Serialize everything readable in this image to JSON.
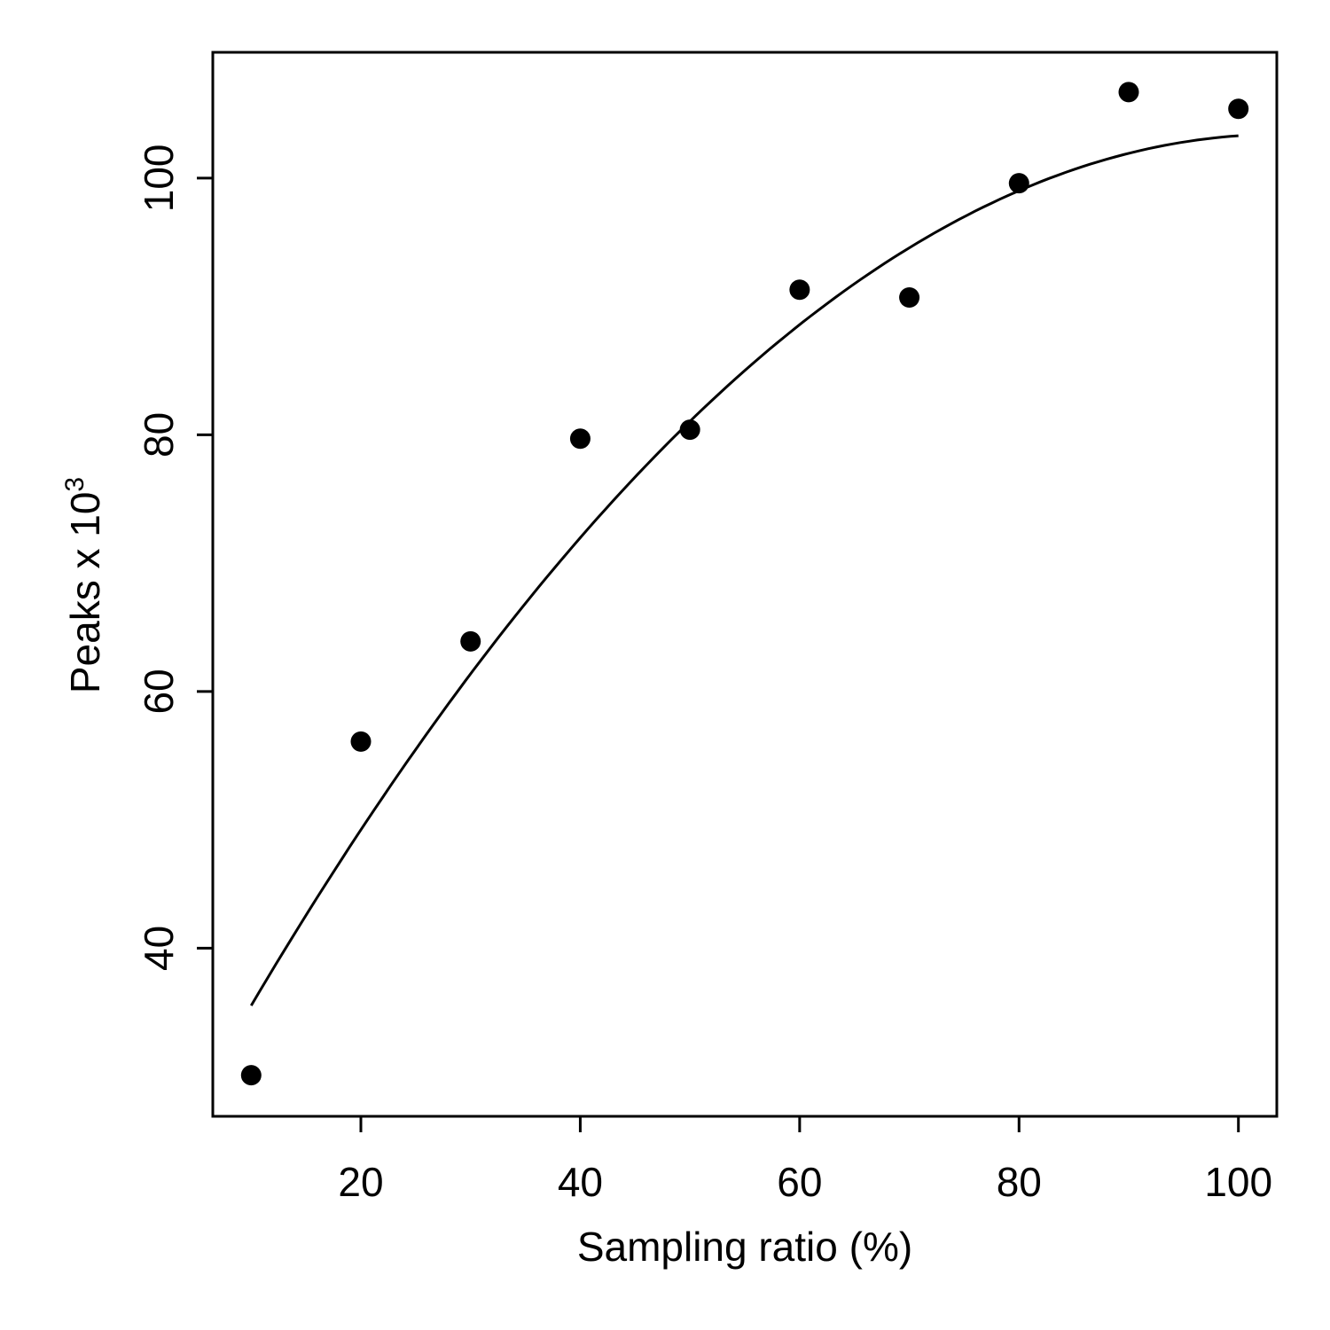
{
  "chart_data": {
    "type": "scatter",
    "xlabel": "Sampling ratio (%)",
    "ylabel": "Peaks x 10",
    "ylabel_superscript": "3",
    "xlim": [
      6.5,
      103.5
    ],
    "ylim": [
      26.9,
      109.8
    ],
    "xticks": [
      20,
      40,
      60,
      80,
      100
    ],
    "yticks": [
      40,
      60,
      80,
      100
    ],
    "grid": false,
    "points": [
      {
        "x": 10,
        "y": 30.1
      },
      {
        "x": 20,
        "y": 56.1
      },
      {
        "x": 30,
        "y": 63.9
      },
      {
        "x": 40,
        "y": 79.7
      },
      {
        "x": 50,
        "y": 80.4
      },
      {
        "x": 60,
        "y": 91.3
      },
      {
        "x": 70,
        "y": 90.7
      },
      {
        "x": 80,
        "y": 99.6
      },
      {
        "x": 90,
        "y": 106.7
      },
      {
        "x": 100,
        "y": 105.4
      }
    ],
    "fit_curve": {
      "type": "quadratic",
      "coefficients": [
        20.3,
        1.6,
        -0.0077
      ],
      "x_range": [
        10,
        100
      ]
    },
    "colors": {
      "points": "#000000",
      "line": "#000000",
      "axes": "#000000"
    }
  }
}
